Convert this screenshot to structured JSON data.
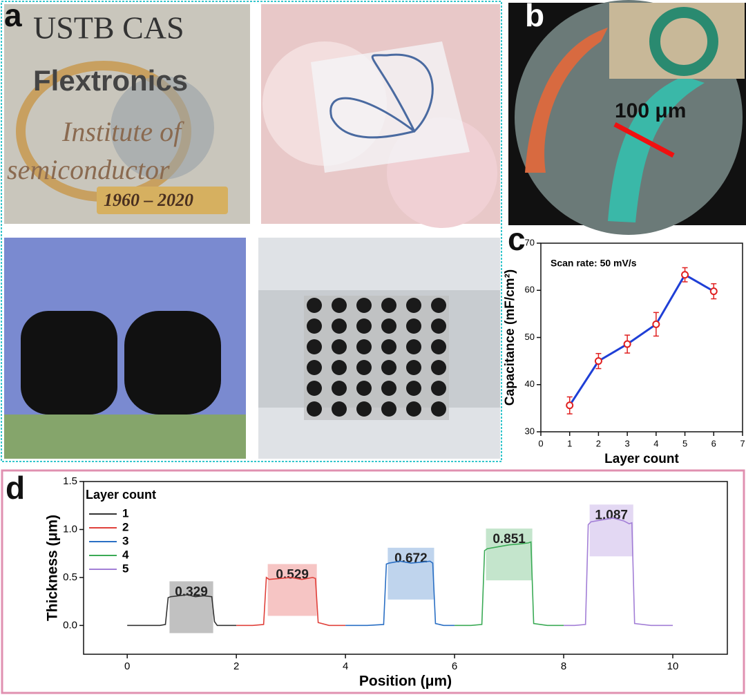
{
  "labels": {
    "a": "a",
    "b": "b",
    "c": "c",
    "d": "d"
  },
  "photo_texts": {
    "ustb": "USTB CAS",
    "flex": "Flextronics",
    "inst": "Institute of",
    "semi": "semiconductor",
    "years": "1960 – 2020",
    "scale": "100 μm"
  },
  "chart_data": [
    {
      "type": "line",
      "xlabel": "Layer count",
      "ylabel": "Capacitance (mF/cm²)",
      "annotation": "Scan rate: 50 mV/s",
      "x": [
        1,
        2,
        3,
        4,
        5,
        6
      ],
      "values": [
        35.6,
        45,
        48.6,
        52.8,
        63.3,
        59.8
      ],
      "errors": [
        1.8,
        1.6,
        1.9,
        2.5,
        1.5,
        1.6
      ],
      "color": "#1f3fd6",
      "marker_color": "#e02020",
      "xlim": [
        0,
        7
      ],
      "xticks": [
        0,
        1,
        2,
        3,
        4,
        5,
        6,
        7
      ],
      "ylim": [
        30,
        70
      ],
      "yticks": [
        30,
        40,
        50,
        60,
        70
      ]
    },
    {
      "type": "line",
      "xlabel": "Position (μm)",
      "ylabel": "Thickness (μm)",
      "legend_title": "Layer count",
      "legend": "upper left",
      "xlim": [
        -0.8,
        11
      ],
      "xticks": [
        0,
        2,
        4,
        6,
        8,
        10
      ],
      "ylim": [
        -0.3,
        1.5
      ],
      "yticks": [
        {
          "value": 0,
          "label": "0.0"
        },
        0.5,
        {
          "value": 1,
          "label": "1.0"
        },
        1.5
      ],
      "series": [
        {
          "name": "1",
          "color": "#333333",
          "annotation": "0.329",
          "x": [
            0,
            0.3,
            0.6,
            0.7,
            0.75,
            0.8,
            0.95,
            1.1,
            1.25,
            1.4,
            1.55,
            1.6,
            1.65,
            1.8,
            2.0
          ],
          "values": [
            0,
            0,
            0,
            0.01,
            0.29,
            0.3,
            0.31,
            0.32,
            0.3,
            0.31,
            0.3,
            0.04,
            0,
            0,
            0
          ]
        },
        {
          "name": "2",
          "color": "#e0403a",
          "annotation": "0.529",
          "x": [
            2,
            2.3,
            2.5,
            2.55,
            2.6,
            2.8,
            3.0,
            3.2,
            3.4,
            3.45,
            3.5,
            3.7,
            4.0
          ],
          "values": [
            0,
            0,
            0.01,
            0.5,
            0.48,
            0.49,
            0.5,
            0.48,
            0.5,
            0.49,
            0.03,
            0,
            0
          ]
        },
        {
          "name": "3",
          "color": "#2a6fc4",
          "annotation": "0.672",
          "x": [
            4,
            4.4,
            4.7,
            4.75,
            4.8,
            5.0,
            5.2,
            5.4,
            5.55,
            5.6,
            5.65,
            5.8,
            6.0
          ],
          "values": [
            0,
            0,
            0.01,
            0.64,
            0.65,
            0.67,
            0.65,
            0.66,
            0.67,
            0.65,
            0.02,
            0,
            0
          ]
        },
        {
          "name": "4",
          "color": "#3aaa55",
          "annotation": "0.851",
          "x": [
            6,
            6.3,
            6.5,
            6.55,
            6.6,
            6.8,
            7.0,
            7.2,
            7.35,
            7.4,
            7.45,
            7.7,
            8.0
          ],
          "values": [
            0,
            0,
            0.01,
            0.78,
            0.8,
            0.82,
            0.84,
            0.85,
            0.86,
            0.87,
            0.02,
            0,
            0
          ]
        },
        {
          "name": "5",
          "color": "#a27ed6",
          "annotation": "1.087",
          "x": [
            8,
            8.2,
            8.4,
            8.45,
            8.5,
            8.7,
            8.9,
            9.1,
            9.2,
            9.25,
            9.3,
            9.6,
            10.0
          ],
          "values": [
            0,
            0,
            0.01,
            1.05,
            1.08,
            1.1,
            1.12,
            1.09,
            1.06,
            1.07,
            0.02,
            0,
            0
          ]
        }
      ]
    }
  ]
}
